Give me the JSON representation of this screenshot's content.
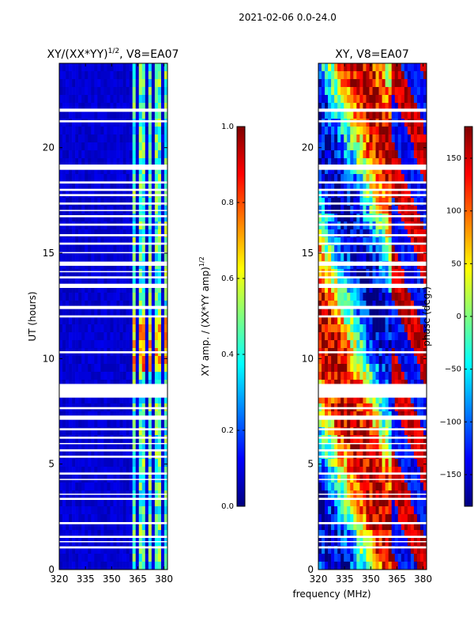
{
  "figure": {
    "suptitle": "2021-02-06 0.0-24.0",
    "xlabel_shared": "frequency (MHz)"
  },
  "colors": {
    "white": "#ffffff",
    "jet_stops": [
      "#00007f",
      "#0000ff",
      "#007fff",
      "#00ffff",
      "#7fff7f",
      "#ffff00",
      "#ff7f00",
      "#ff0000",
      "#7f0000"
    ]
  },
  "chart_data": [
    {
      "type": "heatmap",
      "name": "amplitude",
      "title_prefix": "XY/(XX*YY)",
      "title_exponent": "1/2",
      "title_suffix": ", V8=EA07",
      "xlabel": "",
      "ylabel": "UT (hours)",
      "xlim": [
        320,
        382
      ],
      "ylim": [
        0,
        24
      ],
      "xticks": [
        320,
        335,
        350,
        365,
        380
      ],
      "yticks": [
        0,
        5,
        10,
        15,
        20
      ],
      "colorbar": {
        "label": "XY amp. / (XX*YY amp)",
        "label_exp": "1/2",
        "range": [
          0.0,
          1.0
        ],
        "ticks": [
          0.0,
          0.2,
          0.4,
          0.6,
          0.8,
          1.0
        ],
        "tick_labels": [
          "0.0",
          "0.2",
          "0.4",
          "0.6",
          "0.8",
          "1.0"
        ]
      },
      "background_value": 0.05,
      "bright_bands_mhz": [
        [
          362,
          364.5
        ],
        [
          366,
          369
        ],
        [
          370.5,
          373.5
        ],
        [
          375,
          377.5
        ],
        [
          379.5,
          381.5
        ]
      ],
      "band_value": 0.45,
      "gaps_ut": [
        [
          21.7,
          21.85
        ],
        [
          21.2,
          21.3
        ],
        [
          18.95,
          19.2
        ],
        [
          18.3,
          18.4
        ],
        [
          17.95,
          18.05
        ],
        [
          17.7,
          17.8
        ],
        [
          17.3,
          17.4
        ],
        [
          17.0,
          17.05
        ],
        [
          16.7,
          16.8
        ],
        [
          16.3,
          16.4
        ],
        [
          15.8,
          15.9
        ],
        [
          15.4,
          15.5
        ],
        [
          15.0,
          15.05
        ],
        [
          14.4,
          14.6
        ],
        [
          14.1,
          14.15
        ],
        [
          13.8,
          13.9
        ],
        [
          13.35,
          13.55
        ],
        [
          12.35,
          12.5
        ],
        [
          11.95,
          12.05
        ],
        [
          10.25,
          10.35
        ],
        [
          8.75,
          8.8
        ],
        [
          8.15,
          8.75
        ],
        [
          7.6,
          7.7
        ],
        [
          7.1,
          7.3
        ],
        [
          6.6,
          6.7
        ],
        [
          6.2,
          6.3
        ],
        [
          5.95,
          6.0
        ],
        [
          5.6,
          5.7
        ],
        [
          5.3,
          5.4
        ],
        [
          4.5,
          4.6
        ],
        [
          4.25,
          4.3
        ],
        [
          3.55,
          3.6
        ],
        [
          3.3,
          3.4
        ],
        [
          2.15,
          2.25
        ],
        [
          1.5,
          1.6
        ],
        [
          1.3,
          1.35
        ],
        [
          1.0,
          1.1
        ]
      ]
    },
    {
      "type": "heatmap",
      "name": "phase",
      "title_prefix": "XY, V8=EA07",
      "title_exponent": "",
      "title_suffix": "",
      "xlabel": "",
      "ylabel": "",
      "xlim": [
        320,
        382
      ],
      "ylim": [
        0,
        24
      ],
      "xticks": [
        320,
        335,
        350,
        365,
        380
      ],
      "yticks": [
        0,
        5,
        10,
        15,
        20
      ],
      "colorbar": {
        "label": "phase (deg.)",
        "label_exp": "",
        "range": [
          -180,
          180
        ],
        "ticks": [
          -150,
          -100,
          -50,
          0,
          50,
          100,
          150
        ],
        "tick_labels": [
          "−150",
          "−100",
          "−50",
          "0",
          "50",
          "100",
          "150"
        ]
      },
      "gaps_ut": [
        [
          21.7,
          21.85
        ],
        [
          21.2,
          21.3
        ],
        [
          18.95,
          19.2
        ],
        [
          18.3,
          18.4
        ],
        [
          17.95,
          18.05
        ],
        [
          17.7,
          17.8
        ],
        [
          17.3,
          17.4
        ],
        [
          17.0,
          17.05
        ],
        [
          16.7,
          16.8
        ],
        [
          16.3,
          16.4
        ],
        [
          15.8,
          15.9
        ],
        [
          15.4,
          15.5
        ],
        [
          15.0,
          15.05
        ],
        [
          14.4,
          14.6
        ],
        [
          14.1,
          14.15
        ],
        [
          13.8,
          13.9
        ],
        [
          13.35,
          13.55
        ],
        [
          12.35,
          12.5
        ],
        [
          11.95,
          12.05
        ],
        [
          10.25,
          10.35
        ],
        [
          8.75,
          8.8
        ],
        [
          8.15,
          8.75
        ],
        [
          7.6,
          7.7
        ],
        [
          7.1,
          7.3
        ],
        [
          6.6,
          6.7
        ],
        [
          6.2,
          6.3
        ],
        [
          5.95,
          6.0
        ],
        [
          5.6,
          5.7
        ],
        [
          5.3,
          5.4
        ],
        [
          4.5,
          4.6
        ],
        [
          4.25,
          4.3
        ],
        [
          3.55,
          3.6
        ],
        [
          3.3,
          3.4
        ],
        [
          2.15,
          2.25
        ],
        [
          1.5,
          1.6
        ],
        [
          1.3,
          1.35
        ],
        [
          1.0,
          1.1
        ]
      ]
    }
  ]
}
